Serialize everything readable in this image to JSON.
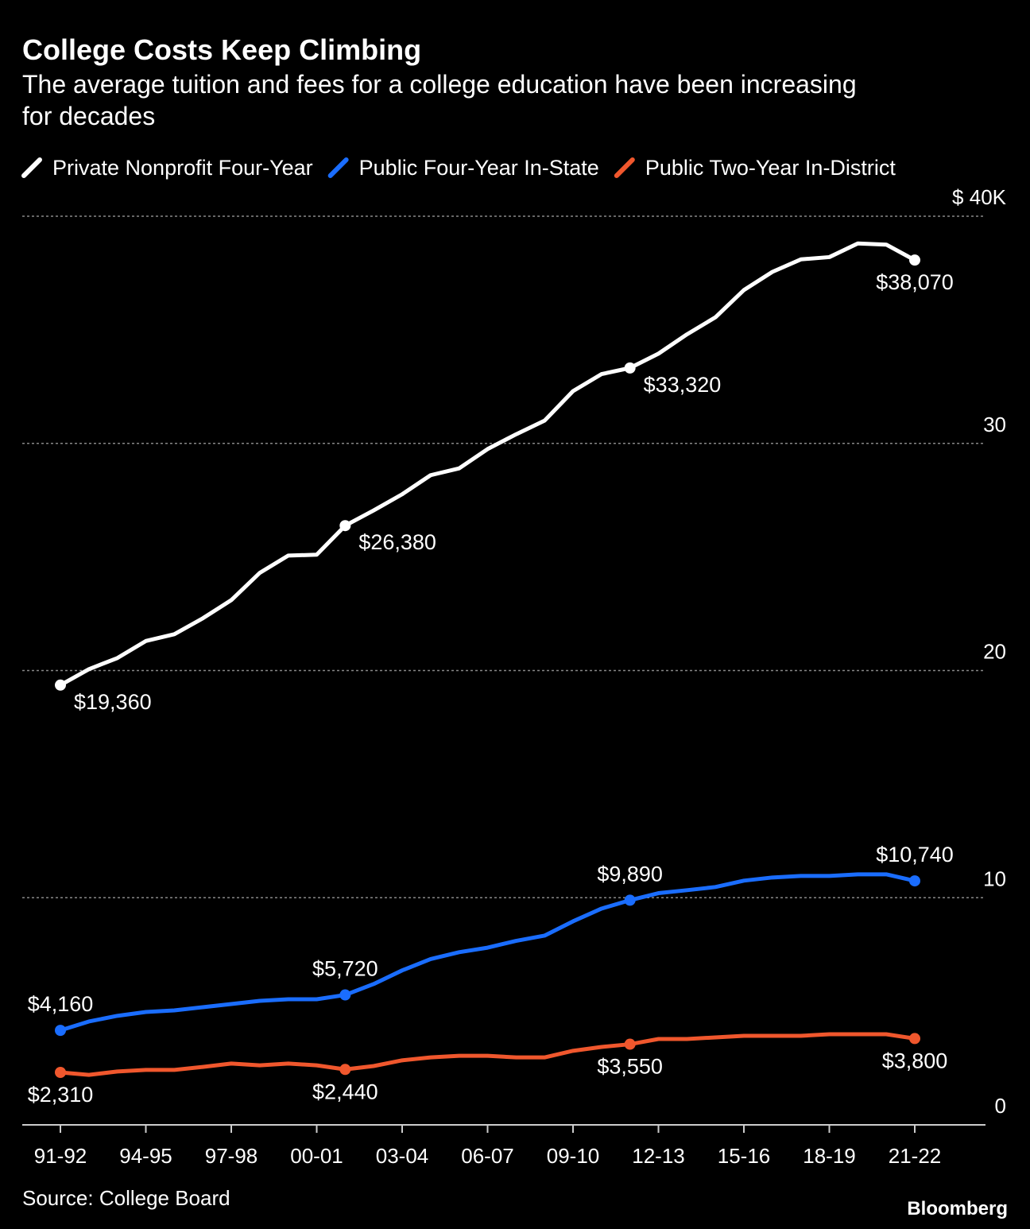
{
  "chart_data": {
    "type": "line",
    "title": "College Costs Keep Climbing",
    "subtitle": "The average tuition and fees for a college education have been increasing for decades",
    "source": "Source: College Board",
    "brand": "Bloomberg",
    "categories": [
      "91-92",
      null,
      null,
      "94-95",
      null,
      null,
      "97-98",
      null,
      null,
      "00-01",
      null,
      null,
      "03-04",
      null,
      null,
      "06-07",
      null,
      null,
      "09-10",
      null,
      null,
      "12-13",
      null,
      null,
      "15-16",
      null,
      null,
      "18-19",
      null,
      null,
      "21-22"
    ],
    "series": [
      {
        "name": "Private Nonprofit Four-Year",
        "color": "#ffffff",
        "values": [
          19.36,
          20.06,
          20.55,
          21.3,
          21.6,
          22.3,
          23.1,
          24.3,
          25.06,
          25.1,
          26.38,
          27.05,
          27.76,
          28.6,
          28.9,
          29.75,
          30.4,
          31.0,
          32.3,
          33.05,
          33.32,
          33.95,
          34.8,
          35.55,
          36.75,
          37.55,
          38.1,
          38.2,
          38.8,
          38.75,
          38.07
        ],
        "value_labels": [
          "$19,360",
          null,
          null,
          null,
          null,
          null,
          null,
          null,
          null,
          null,
          "$26,380",
          null,
          null,
          null,
          null,
          null,
          null,
          null,
          null,
          null,
          "$33,320",
          null,
          null,
          null,
          null,
          null,
          null,
          null,
          null,
          null,
          "$38,070"
        ]
      },
      {
        "name": "Public Four-Year In-State",
        "color": "#1a6dff",
        "values": [
          4.16,
          4.55,
          4.8,
          4.97,
          5.04,
          5.18,
          5.32,
          5.46,
          5.53,
          5.53,
          5.72,
          6.2,
          6.8,
          7.3,
          7.6,
          7.8,
          8.1,
          8.33,
          8.96,
          9.52,
          9.89,
          10.2,
          10.33,
          10.47,
          10.75,
          10.89,
          10.96,
          10.96,
          11.03,
          11.03,
          10.74
        ],
        "value_labels": [
          "$4,160",
          null,
          null,
          null,
          null,
          null,
          null,
          null,
          null,
          null,
          "$5,720",
          null,
          null,
          null,
          null,
          null,
          null,
          null,
          null,
          null,
          "$9,890",
          null,
          null,
          null,
          null,
          null,
          null,
          null,
          null,
          null,
          "$10,740"
        ]
      },
      {
        "name": "Public Two-Year In-District",
        "color": "#f0572d",
        "values": [
          2.31,
          2.2,
          2.35,
          2.42,
          2.42,
          2.55,
          2.7,
          2.62,
          2.7,
          2.62,
          2.44,
          2.59,
          2.84,
          2.97,
          3.04,
          3.04,
          2.97,
          2.97,
          3.26,
          3.43,
          3.55,
          3.78,
          3.78,
          3.85,
          3.92,
          3.92,
          3.92,
          3.99,
          3.99,
          3.99,
          3.8
        ],
        "value_labels": [
          "$2,310",
          null,
          null,
          null,
          null,
          null,
          null,
          null,
          null,
          null,
          "$2,440",
          null,
          null,
          null,
          null,
          null,
          null,
          null,
          null,
          null,
          "$3,550",
          null,
          null,
          null,
          null,
          null,
          null,
          null,
          null,
          null,
          "$3,800"
        ]
      }
    ],
    "ylim": [
      0,
      40
    ],
    "yticks": [
      0,
      10,
      20,
      30,
      {
        "value": 40,
        "label": "$ 40K"
      }
    ],
    "grid": true
  }
}
